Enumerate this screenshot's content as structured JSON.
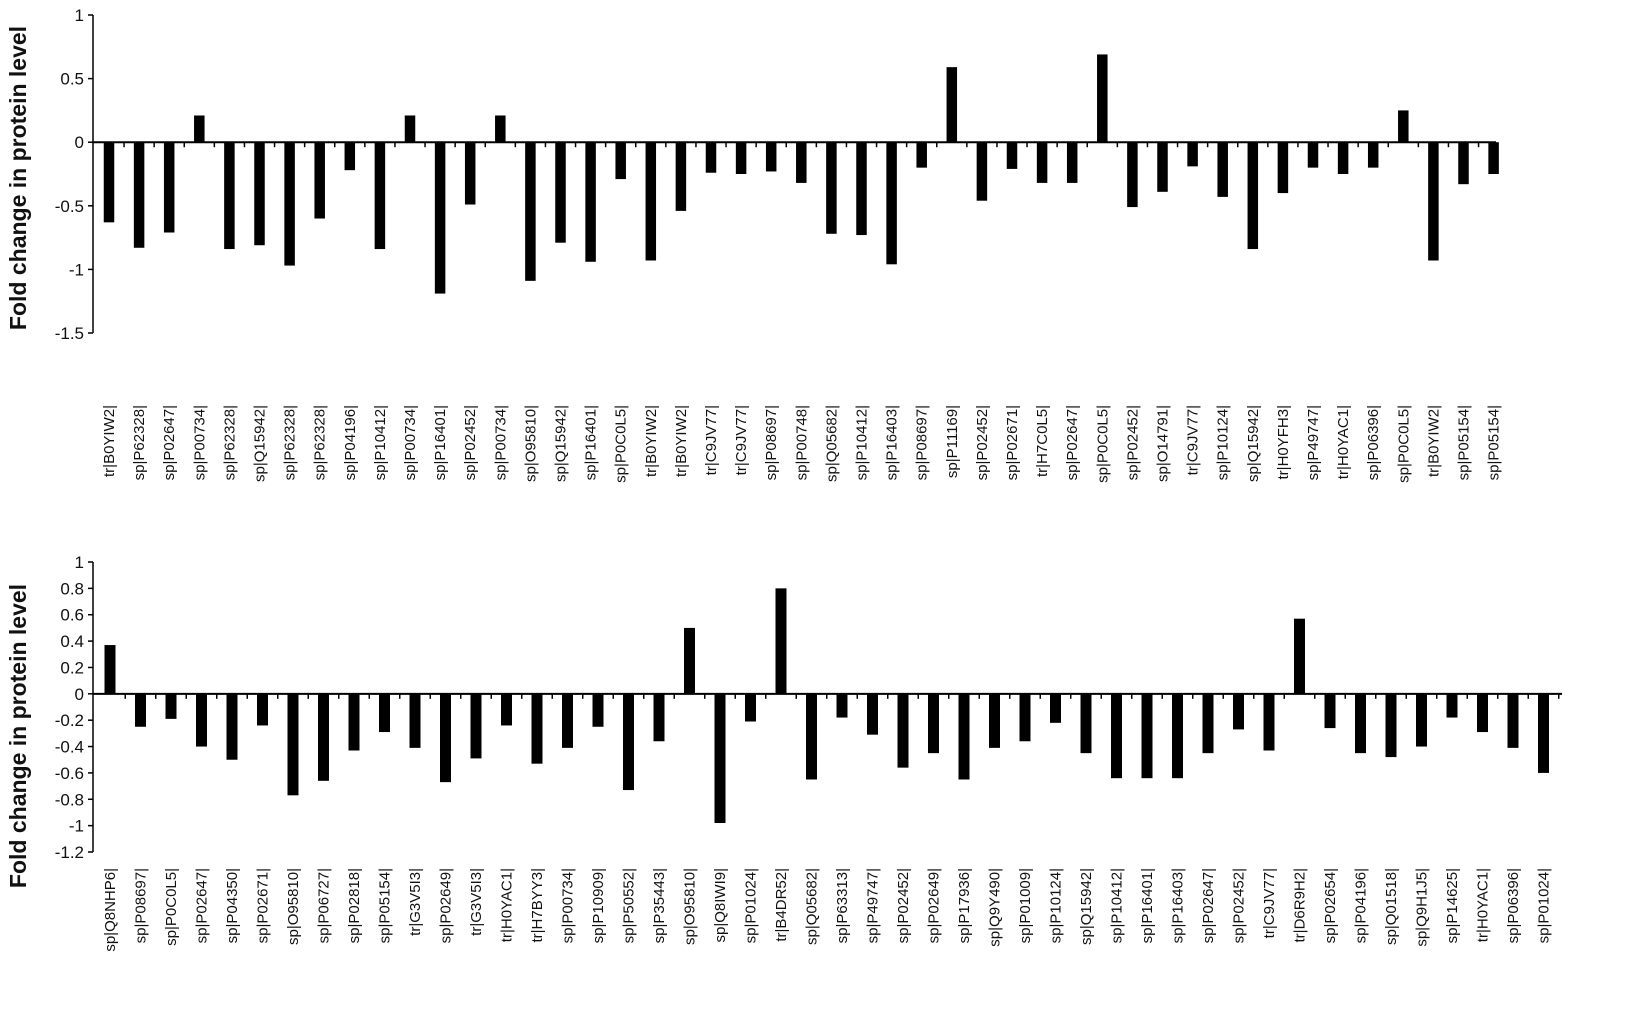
{
  "chart_data": [
    {
      "type": "bar",
      "ylabel": "Fold change in protein level",
      "ylim": [
        -1.5,
        1
      ],
      "yticks": [
        1,
        0.5,
        0,
        -0.5,
        -1,
        -1.5
      ],
      "ytick_labels": [
        "1",
        "0.5",
        "0",
        "-0.5",
        "-1",
        "-1.5"
      ],
      "legend": "none",
      "grid": false,
      "bar_color": "#000000",
      "categories": [
        "tr|B0YIW2|",
        "sp|P62328|",
        "sp|P02647|",
        "sp|P00734|",
        "sp|P62328|",
        "sp|Q15942|",
        "sp|P62328|",
        "sp|P62328|",
        "sp|P04196|",
        "sp|P10412|",
        "sp|P00734|",
        "sp|P16401|",
        "sp|P02452|",
        "sp|P00734|",
        "sp|O95810|",
        "sp|Q15942|",
        "sp|P16401|",
        "sp|P0C0L5|",
        "tr|B0YIW2|",
        "tr|B0YIW2|",
        "tr|C9JV77|",
        "tr|C9JV77|",
        "sp|P08697|",
        "sp|P00748|",
        "sp|Q05682|",
        "sp|P10412|",
        "sp|P16403|",
        "sp|P08697|",
        "sp|P11169|",
        "sp|P02452|",
        "sp|P02671|",
        "tr|H7C0L5|",
        "sp|P02647|",
        "sp|P0C0L5|",
        "sp|P02452|",
        "sp|O14791|",
        "tr|C9JV77|",
        "sp|P10124|",
        "sp|Q15942|",
        "tr|H0YFH3|",
        "sp|P49747|",
        "tr|H0YAC1|",
        "sp|P06396|",
        "sp|P0C0L5|",
        "tr|B0YIW2|",
        "sp|P05154|",
        "sp|P05154|"
      ],
      "values": [
        -0.63,
        -0.83,
        -0.71,
        0.21,
        -0.84,
        -0.81,
        -0.97,
        -0.6,
        -0.22,
        -0.84,
        0.21,
        -1.19,
        -0.49,
        0.21,
        -1.09,
        -0.79,
        -0.94,
        -0.29,
        -0.93,
        -0.54,
        -0.24,
        -0.25,
        -0.23,
        -0.32,
        -0.72,
        -0.73,
        -0.96,
        -0.2,
        0.59,
        -0.46,
        -0.21,
        -0.32,
        -0.32,
        0.69,
        -0.51,
        -0.39,
        -0.19,
        -0.43,
        -0.84,
        -0.4,
        -0.2,
        -0.25,
        -0.2,
        0.25,
        -0.93,
        -0.33,
        -0.25
      ]
    },
    {
      "type": "bar",
      "ylabel": "Fold change in protein level",
      "ylim": [
        -1.2,
        1
      ],
      "yticks": [
        1,
        0.8,
        0.6,
        0.4,
        0.2,
        0,
        -0.2,
        -0.4,
        -0.6,
        -0.8,
        -1,
        -1.2
      ],
      "ytick_labels": [
        "1",
        "0.8",
        "0.6",
        "0.4",
        "0.2",
        "0",
        "-0.2",
        "-0.4",
        "-0.6",
        "-0.8",
        "-1",
        "-1.2"
      ],
      "legend": "none",
      "grid": false,
      "bar_color": "#000000",
      "categories": [
        "sp|Q8NHP6|",
        "sp|P08697|",
        "sp|P0C0L5|",
        "sp|P02647|",
        "sp|P04350|",
        "sp|P02671|",
        "sp|O95810|",
        "sp|P06727|",
        "sp|P02818|",
        "sp|P05154|",
        "tr|G3V5I3|",
        "sp|P02649|",
        "tr|G3V5I3|",
        "tr|H0YAC1|",
        "tr|H7BYY3|",
        "sp|P00734|",
        "sp|P10909|",
        "sp|P50552|",
        "sp|P35443|",
        "sp|O95810|",
        "sp|Q8IWI9|",
        "sp|P01024|",
        "tr|B4DR52|",
        "sp|Q05682|",
        "sp|P63313|",
        "sp|P49747|",
        "sp|P02452|",
        "sp|P02649|",
        "sp|P17936|",
        "sp|Q9Y490|",
        "sp|P01009|",
        "sp|P10124|",
        "sp|Q15942|",
        "sp|P10412|",
        "sp|P16401|",
        "sp|P16403|",
        "sp|P02647|",
        "sp|P02452|",
        "tr|C9JV77|",
        "tr|D6R9H2|",
        "sp|P02654|",
        "sp|P04196|",
        "sp|Q01518|",
        "sp|Q9H1J5|",
        "sp|P14625|",
        "tr|H0YAC1|",
        "sp|P06396|",
        "sp|P01024|"
      ],
      "values": [
        0.37,
        -0.25,
        -0.19,
        -0.4,
        -0.5,
        -0.24,
        -0.77,
        -0.66,
        -0.43,
        -0.29,
        -0.41,
        -0.67,
        -0.49,
        -0.24,
        -0.53,
        -0.41,
        -0.25,
        -0.73,
        -0.36,
        0.5,
        -0.98,
        -0.21,
        0.8,
        -0.65,
        -0.18,
        -0.31,
        -0.56,
        -0.45,
        -0.65,
        -0.41,
        -0.36,
        -0.22,
        -0.45,
        -0.64,
        -0.64,
        -0.64,
        -0.45,
        -0.27,
        -0.43,
        0.57,
        -0.26,
        -0.45,
        -0.48,
        -0.4,
        -0.18,
        -0.29,
        -0.41,
        -0.6
      ]
    }
  ]
}
